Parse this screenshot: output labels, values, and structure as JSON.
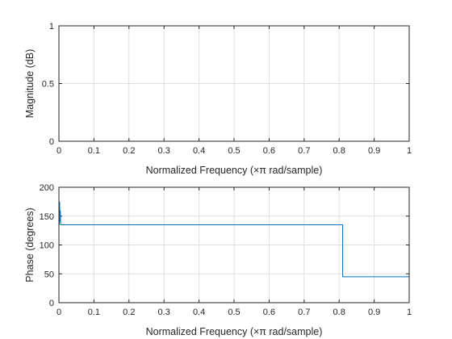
{
  "chart_data": [
    {
      "type": "line",
      "xlabel": "Normalized Frequency  (×π rad/sample)",
      "ylabel": "Magnitude (dB)",
      "xlim": [
        0,
        1
      ],
      "ylim": [
        0,
        1
      ],
      "xticks": [
        "0",
        "0.1",
        "0.2",
        "0.3",
        "0.4",
        "0.5",
        "0.6",
        "0.7",
        "0.8",
        "0.9",
        "1"
      ],
      "yticks": [
        "0",
        "0.5",
        "1"
      ],
      "grid": true,
      "series": []
    },
    {
      "type": "line",
      "xlabel": "Normalized Frequency  (×π rad/sample)",
      "ylabel": "Phase (degrees)",
      "xlim": [
        0,
        1
      ],
      "ylim": [
        0,
        200
      ],
      "xticks": [
        "0",
        "0.1",
        "0.2",
        "0.3",
        "0.4",
        "0.5",
        "0.6",
        "0.7",
        "0.8",
        "0.9",
        "1"
      ],
      "yticks": [
        "0",
        "50",
        "100",
        "150",
        "200"
      ],
      "grid": true,
      "series": [
        {
          "color": "#0072BD",
          "x": [
            0,
            0.001,
            0.002,
            0.003,
            0.004,
            0.005,
            0.81,
            0.81,
            1.0
          ],
          "y": [
            180,
            135,
            175,
            140,
            160,
            135,
            135,
            45,
            45
          ]
        }
      ]
    }
  ]
}
